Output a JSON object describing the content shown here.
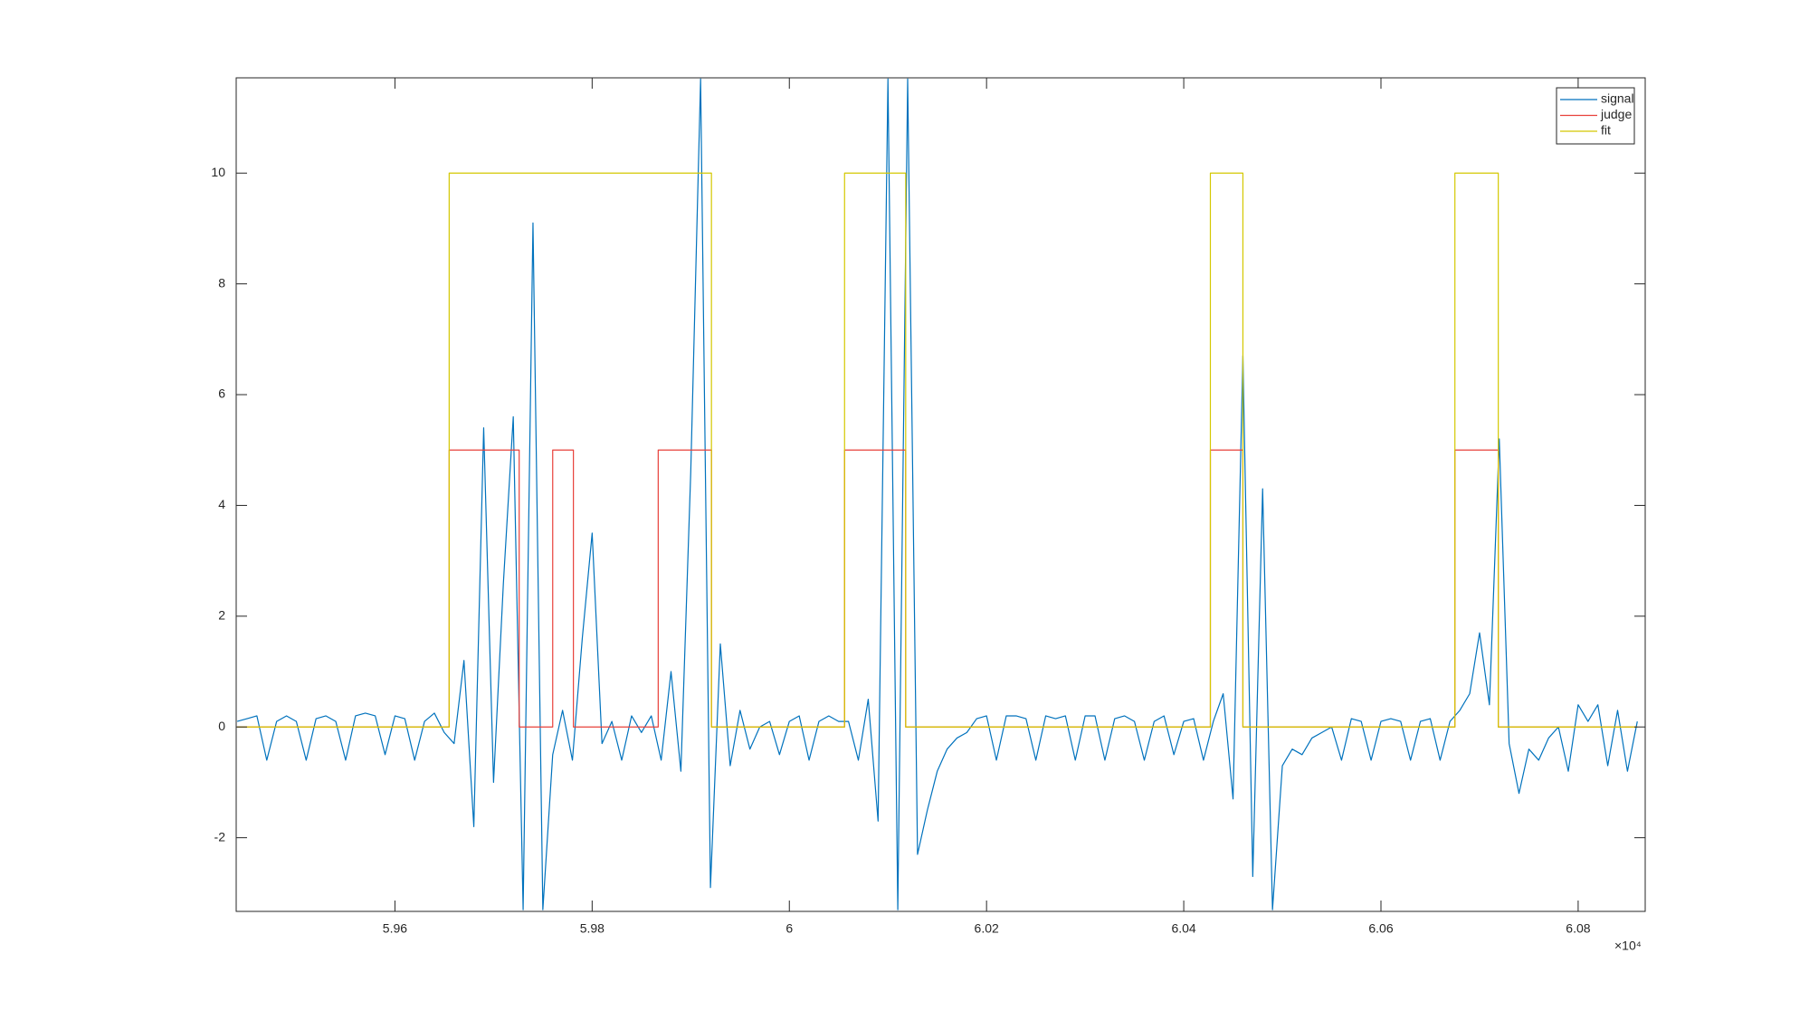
{
  "chart_data": {
    "type": "line",
    "xlim": [
      59439,
      60868
    ],
    "ylim": [
      -3.33,
      11.72
    ],
    "xticks": [
      {
        "value": 59600,
        "label": "5.96"
      },
      {
        "value": 59800,
        "label": "5.98"
      },
      {
        "value": 60000,
        "label": "6"
      },
      {
        "value": 60200,
        "label": "6.02"
      },
      {
        "value": 60400,
        "label": "6.04"
      },
      {
        "value": 60600,
        "label": "6.06"
      },
      {
        "value": 60800,
        "label": "6.08"
      }
    ],
    "yticks": [
      -2,
      0,
      2,
      4,
      6,
      8,
      10
    ],
    "x_exponent": "×10⁴",
    "legend_position": "northeast",
    "grid": false,
    "series": [
      {
        "name": "signal",
        "color": "#0072bd",
        "x": [
          59440,
          59450,
          59460,
          59470,
          59480,
          59490,
          59500,
          59510,
          59520,
          59530,
          59540,
          59550,
          59560,
          59570,
          59580,
          59590,
          59600,
          59610,
          59620,
          59630,
          59640,
          59650,
          59660,
          59670,
          59680,
          59690,
          59700,
          59710,
          59720,
          59730,
          59740,
          59750,
          59760,
          59770,
          59780,
          59790,
          59800,
          59810,
          59820,
          59830,
          59840,
          59850,
          59860,
          59870,
          59880,
          59890,
          59900,
          59910,
          59920,
          59930,
          59940,
          59950,
          59960,
          59970,
          59980,
          59990,
          60000,
          60010,
          60020,
          60030,
          60040,
          60050,
          60060,
          60070,
          60080,
          60090,
          60100,
          60110,
          60120,
          60130,
          60140,
          60150,
          60160,
          60170,
          60180,
          60190,
          60200,
          60210,
          60220,
          60230,
          60240,
          60250,
          60260,
          60270,
          60280,
          60290,
          60300,
          60310,
          60320,
          60330,
          60340,
          60350,
          60360,
          60370,
          60380,
          60390,
          60400,
          60410,
          60420,
          60430,
          60440,
          60450,
          60460,
          60470,
          60480,
          60490,
          60500,
          60510,
          60520,
          60530,
          60540,
          60550,
          60560,
          60570,
          60580,
          60590,
          60600,
          60610,
          60620,
          60630,
          60640,
          60650,
          60660,
          60670,
          60680,
          60690,
          60700,
          60710,
          60720,
          60730,
          60740,
          60750,
          60760,
          60770,
          60780,
          60790,
          60800,
          60810,
          60820,
          60830,
          60840,
          60850,
          60860
        ],
        "values": [
          0.1,
          0.15,
          0.2,
          -0.6,
          0.1,
          0.2,
          0.1,
          -0.6,
          0.15,
          0.2,
          0.1,
          -0.6,
          0.2,
          0.25,
          0.2,
          -0.5,
          0.2,
          0.15,
          -0.6,
          0.1,
          0.25,
          -0.1,
          -0.3,
          1.2,
          -1.8,
          5.4,
          -1.0,
          2.6,
          5.6,
          -3.3,
          9.1,
          -3.3,
          -0.5,
          0.3,
          -0.6,
          1.6,
          3.5,
          -0.3,
          0.1,
          -0.6,
          0.2,
          -0.1,
          0.2,
          -0.6,
          1.0,
          -0.8,
          4.6,
          11.7,
          -2.9,
          1.5,
          -0.7,
          0.3,
          -0.4,
          0.0,
          0.1,
          -0.5,
          0.1,
          0.2,
          -0.6,
          0.1,
          0.2,
          0.1,
          0.1,
          -0.6,
          0.5,
          -1.7,
          11.7,
          -3.3,
          11.7,
          -2.3,
          -1.5,
          -0.8,
          -0.4,
          -0.2,
          -0.1,
          0.15,
          0.2,
          -0.6,
          0.2,
          0.2,
          0.15,
          -0.6,
          0.2,
          0.15,
          0.2,
          -0.6,
          0.2,
          0.2,
          -0.6,
          0.15,
          0.2,
          0.1,
          -0.6,
          0.1,
          0.2,
          -0.5,
          0.1,
          0.15,
          -0.6,
          0.1,
          0.6,
          -1.3,
          6.7,
          -2.7,
          4.3,
          -3.3,
          -0.7,
          -0.4,
          -0.5,
          -0.2,
          -0.1,
          0.0,
          -0.6,
          0.15,
          0.1,
          -0.6,
          0.1,
          0.15,
          0.1,
          -0.6,
          0.1,
          0.15,
          -0.6,
          0.1,
          0.3,
          0.6,
          1.7,
          0.4,
          5.2,
          -0.3,
          -1.2,
          -0.4,
          -0.6,
          -0.2,
          0.0,
          -0.8,
          0.4,
          0.1,
          0.4,
          -0.7,
          0.3,
          -0.8,
          0.1
        ]
      },
      {
        "name": "judge",
        "color": "#e8403a",
        "x": [
          59440,
          59655,
          59655,
          59726,
          59726,
          59760,
          59760,
          59781,
          59781,
          59867,
          59867,
          59921,
          59921,
          60056,
          60056,
          60118,
          60118,
          60427,
          60427,
          60460,
          60460,
          60675,
          60675,
          60719,
          60719,
          60860
        ],
        "values": [
          0,
          0,
          5,
          5,
          0,
          0,
          5,
          5,
          0,
          0,
          5,
          5,
          0,
          0,
          5,
          5,
          0,
          0,
          5,
          5,
          0,
          0,
          5,
          5,
          0,
          0
        ]
      },
      {
        "name": "fit",
        "color": "#d4c800",
        "x": [
          59440,
          59655,
          59655,
          59921,
          59921,
          60056,
          60056,
          60118,
          60118,
          60427,
          60427,
          60460,
          60460,
          60675,
          60675,
          60719,
          60719,
          60860
        ],
        "values": [
          0,
          0,
          10,
          10,
          0,
          0,
          10,
          10,
          0,
          0,
          10,
          10,
          0,
          0,
          10,
          10,
          0,
          0
        ]
      }
    ]
  }
}
